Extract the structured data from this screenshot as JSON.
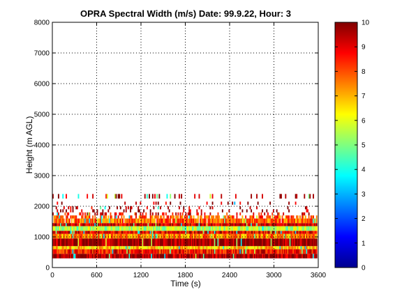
{
  "chart_data": {
    "type": "heatmap",
    "title": "OPRA Spectral Width (m/s)  Date: 99.9.22, Hour: 3",
    "xlabel": "Time (s)",
    "ylabel": "Height (m AGL)",
    "xlim": [
      0,
      3600
    ],
    "ylim": [
      0,
      8000
    ],
    "x_ticks": [
      "0",
      "600",
      "1200",
      "1800",
      "2400",
      "3000",
      "3600"
    ],
    "y_ticks": [
      "0",
      "1000",
      "2000",
      "3000",
      "4000",
      "5000",
      "6000",
      "7000",
      "8000"
    ],
    "grid": true,
    "colorbar": {
      "label_values": [
        "0",
        "1",
        "2",
        "3",
        "4",
        "5",
        "6",
        "7",
        "8",
        "9",
        "10"
      ],
      "range": [
        0,
        10
      ],
      "colormap": "jet"
    },
    "bands": [
      {
        "y0": 300,
        "y1": 450,
        "value": 9.6,
        "x0": 0,
        "x1": 3580,
        "coverage": 1.0
      },
      {
        "y0": 450,
        "y1": 600,
        "value": 8.7,
        "x0": 0,
        "x1": 3580,
        "coverage": 1.0
      },
      {
        "y0": 600,
        "y1": 700,
        "value": 6.8,
        "x0": 0,
        "x1": 3580,
        "coverage": 1.0
      },
      {
        "y0": 700,
        "y1": 950,
        "value": 9.8,
        "x0": 0,
        "x1": 3580,
        "coverage": 1.0
      },
      {
        "y0": 950,
        "y1": 1100,
        "value": 7.5,
        "x0": 0,
        "x1": 3580,
        "coverage": 1.0
      },
      {
        "y0": 1100,
        "y1": 1200,
        "value": 8.9,
        "x0": 0,
        "x1": 3580,
        "coverage": 1.0
      },
      {
        "y0": 1200,
        "y1": 1350,
        "value": 5.5,
        "x0": 0,
        "x1": 3580,
        "coverage": 1.0
      },
      {
        "y0": 1350,
        "y1": 1450,
        "value": 9.2,
        "x0": 0,
        "x1": 3580,
        "coverage": 1.0
      },
      {
        "y0": 1450,
        "y1": 1600,
        "value": 7.8,
        "x0": 0,
        "x1": 3580,
        "coverage": 0.95
      },
      {
        "y0": 1600,
        "y1": 1700,
        "value": 8.0,
        "x0": 0,
        "x1": 3580,
        "coverage": 0.6
      },
      {
        "y0": 1700,
        "y1": 1800,
        "value": 8.8,
        "x0": 0,
        "x1": 3580,
        "coverage": 0.35
      },
      {
        "y0": 1800,
        "y1": 1900,
        "value": 9.7,
        "x0": 0,
        "x1": 3580,
        "coverage": 0.2
      },
      {
        "y0": 1900,
        "y1": 2000,
        "value": 9.5,
        "x0": 0,
        "x1": 3580,
        "coverage": 0.15
      },
      {
        "y0": 2050,
        "y1": 2150,
        "value": 9.6,
        "x0": 0,
        "x1": 3580,
        "coverage": 0.08
      },
      {
        "y0": 2250,
        "y1": 2400,
        "value": 9.8,
        "x0": 0,
        "x1": 3580,
        "coverage": 0.18
      }
    ]
  }
}
